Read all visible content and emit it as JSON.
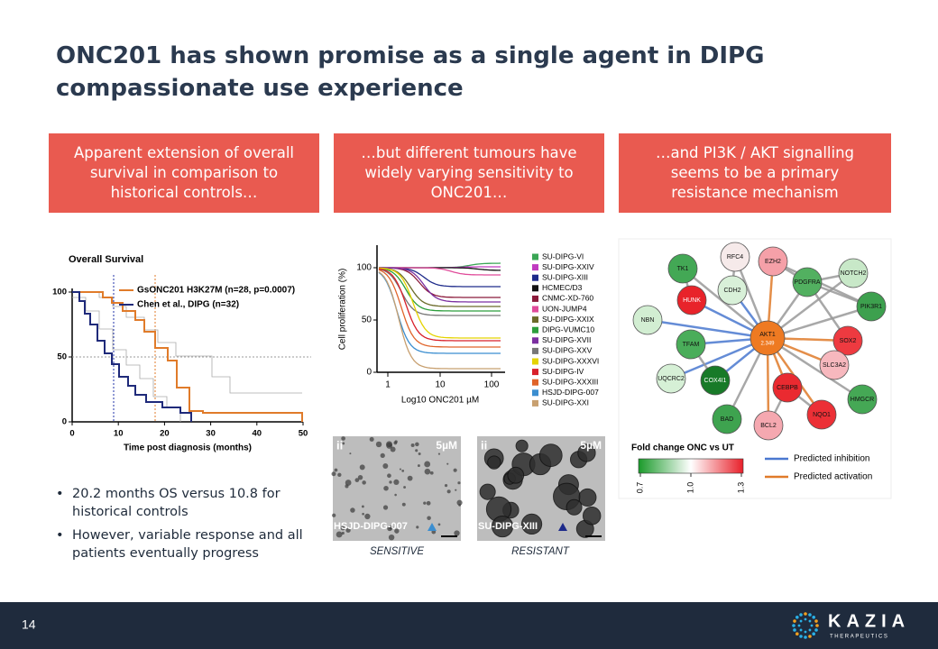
{
  "title": "ONC201 has shown promise as a single agent in DIPG compassionate use experience",
  "panels": [
    "Apparent extension of overall survival in comparison to historical controls…",
    "…but different tumours have widely varying sensitivity to ONC201…",
    "…and PI3K / AKT signalling seems to be a primary resistance mechanism"
  ],
  "survival": {
    "title": "Overall Survival",
    "legend": [
      "GsONC201 H3K27M (n=28, p=0.0007)",
      "Chen et al., DIPG (n=32)"
    ],
    "x_label": "Time post diagnosis (months)",
    "xticks": [
      "0",
      "10",
      "20",
      "30",
      "40",
      "50"
    ],
    "yticks": [
      "0",
      "50",
      "100"
    ]
  },
  "proliferation": {
    "y_label": "Cell proliferation (%)",
    "x_label": "Log10 ONC201 µM",
    "xticks": [
      "1",
      "10",
      "100"
    ],
    "yticks": [
      "0",
      "50",
      "100"
    ],
    "legend": [
      "SU-DIPG-VI",
      "SU-DIPG-XXIV",
      "SU-DIPG-XIII",
      "HCMEC/D3",
      "CNMC-XD-760",
      "UON-JUMP4",
      "SU-DIPG-XXIX",
      "DIPG-VUMC10",
      "SU-DIPG-XVII",
      "SU-DIPG-XXV",
      "SU-DIPG-XXXVI",
      "SU-DIPG-IV",
      "SU-DIPG-XXXIII",
      "HSJD-DIPG-007",
      "SU-DIPG-XXI"
    ]
  },
  "micrographs": [
    {
      "tag": "ii",
      "scale": "5µM",
      "cell_line": "HSJD-DIPG-007",
      "caption": "SENSITIVE"
    },
    {
      "tag": "ii",
      "scale": "5µM",
      "cell_line": "SU-DIPG-XIII",
      "caption": "RESISTANT"
    }
  ],
  "network": {
    "nodes": [
      "RFC4",
      "EZH2",
      "TK1",
      "NOTCH2",
      "CDH2",
      "PDGFRA",
      "HUNK",
      "PIK3R1",
      "NBN",
      "AKT1",
      "TFAM",
      "SOX2",
      "SLC3A2",
      "UQCRC2",
      "COX4I1",
      "CEBPB",
      "HMGCR",
      "BAD",
      "NQO1",
      "BCL2"
    ],
    "akt1_value": "2.349",
    "scale_title": "Fold change ONC vs UT",
    "scale_ticks": [
      "0.7",
      "1.0",
      "1.3"
    ],
    "legend": [
      "Predicted inhibition",
      "Predicted activation"
    ]
  },
  "bullets": [
    "20.2 months OS versus 10.8 for historical controls",
    "However, variable response and all patients eventually progress"
  ],
  "footer": {
    "page": "14",
    "logo": "KAZIA",
    "logo_sub": "THERAPEUTICS"
  }
}
